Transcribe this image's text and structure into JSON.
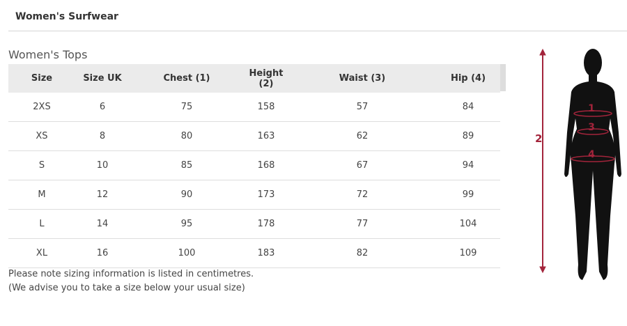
{
  "header": {
    "title": "Women's Surfwear"
  },
  "section": {
    "title": "Women's Tops"
  },
  "table": {
    "columns": [
      "Size",
      "Size UK",
      "Chest (1)",
      "Height (2)",
      "Waist (3)",
      "Hip (4)"
    ],
    "rows": [
      [
        "2XS",
        "6",
        "75",
        "158",
        "57",
        "84"
      ],
      [
        "XS",
        "8",
        "80",
        "163",
        "62",
        "89"
      ],
      [
        "S",
        "10",
        "85",
        "168",
        "67",
        "94"
      ],
      [
        "M",
        "12",
        "90",
        "173",
        "72",
        "99"
      ],
      [
        "L",
        "14",
        "95",
        "178",
        "77",
        "104"
      ],
      [
        "XL",
        "16",
        "100",
        "183",
        "82",
        "109"
      ]
    ]
  },
  "notes": [
    "Please note sizing information is listed in centimetres.",
    "(We advise you to take a size below your usual size)"
  ],
  "figure": {
    "labels": {
      "chest": "1",
      "height": "2",
      "waist": "3",
      "hip": "4"
    },
    "accent": "#a3243b"
  }
}
